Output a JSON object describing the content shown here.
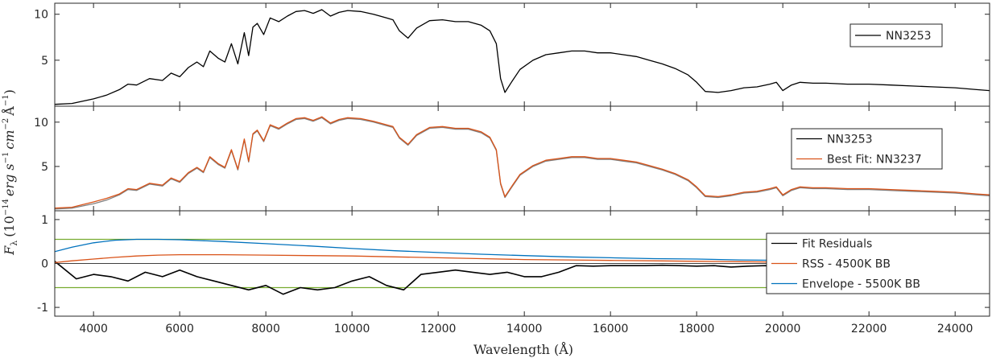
{
  "chart_data": {
    "type": "line",
    "xlabel": "Wavelength (Å)",
    "ylabel": "F_λ (10^-14 erg s^-1 cm^-2 Å^-1)",
    "ylabel_parts": {
      "base": "F",
      "sub": "λ",
      "t1": "(10",
      "e1": "−14",
      "t2": "erg s",
      "e2": "−1",
      "t3": "cm",
      "e3": "−2",
      "t4": "Å",
      "e4": "−1",
      "t5": ")"
    },
    "xlim": [
      3100,
      24800
    ],
    "xticks": [
      4000,
      6000,
      8000,
      10000,
      12000,
      14000,
      16000,
      18000,
      20000,
      22000,
      24000
    ],
    "colors": {
      "observed": "#000000",
      "fit": "#D95319",
      "gray": "#808080",
      "envelope": "#0072BD",
      "limit": "#77AC30"
    },
    "panels": [
      {
        "ylim": [
          0,
          11.2
        ],
        "yticks": [
          5,
          10
        ],
        "legend_location": "top-right",
        "legend": [
          "NN3253"
        ],
        "series": [
          {
            "name": "NN3253",
            "color": "observed",
            "x": [
              3100,
              3500,
              4000,
              4300,
              4600,
              4800,
              5000,
              5300,
              5600,
              5800,
              6000,
              6200,
              6400,
              6550,
              6700,
              6900,
              7050,
              7200,
              7350,
              7500,
              7600,
              7700,
              7800,
              7950,
              8100,
              8300,
              8500,
              8700,
              8900,
              9100,
              9300,
              9500,
              9700,
              9900,
              10200,
              10500,
              10800,
              10950,
              11100,
              11300,
              11500,
              11800,
              12100,
              12400,
              12700,
              13000,
              13200,
              13350,
              13450,
              13550,
              13700,
              13900,
              14200,
              14500,
              14800,
              15100,
              15400,
              15700,
              16000,
              16300,
              16600,
              16900,
              17200,
              17500,
              17800,
              18000,
              18200,
              18500,
              18800,
              19100,
              19400,
              19700,
              19850,
              20000,
              20200,
              20400,
              20700,
              21000,
              21500,
              22000,
              22500,
              23000,
              23500,
              24000,
              24500,
              24800
            ],
            "y": [
              0.2,
              0.3,
              0.8,
              1.2,
              1.8,
              2.4,
              2.3,
              3.0,
              2.8,
              3.6,
              3.2,
              4.2,
              4.8,
              4.3,
              6.0,
              5.2,
              4.8,
              6.8,
              4.6,
              8.0,
              5.5,
              8.6,
              9.0,
              7.8,
              9.6,
              9.2,
              9.8,
              10.3,
              10.4,
              10.1,
              10.5,
              9.8,
              10.2,
              10.4,
              10.3,
              10.0,
              9.6,
              9.4,
              8.2,
              7.4,
              8.5,
              9.3,
              9.4,
              9.2,
              9.2,
              8.8,
              8.2,
              6.8,
              3.0,
              1.5,
              2.6,
              4.0,
              5.0,
              5.6,
              5.8,
              6.0,
              6.0,
              5.8,
              5.8,
              5.6,
              5.4,
              5.0,
              4.6,
              4.1,
              3.4,
              2.6,
              1.6,
              1.5,
              1.7,
              2.0,
              2.1,
              2.4,
              2.6,
              1.7,
              2.3,
              2.6,
              2.5,
              2.5,
              2.4,
              2.4,
              2.3,
              2.2,
              2.1,
              2.0,
              1.8,
              1.7
            ]
          }
        ]
      },
      {
        "ylim": [
          0,
          11.8
        ],
        "yticks": [
          5,
          10
        ],
        "legend_location": "top-right",
        "legend": [
          "NN3253",
          "Best Fit: NN3237"
        ],
        "series": [
          {
            "name": "NN3253",
            "color": "gray",
            "x": [
              3100,
              3500,
              4000,
              4300,
              4600,
              4800,
              5000,
              5300,
              5600,
              5800,
              6000,
              6200,
              6400,
              6550,
              6700,
              6900,
              7050,
              7200,
              7350,
              7500,
              7600,
              7700,
              7800,
              7950,
              8100,
              8300,
              8500,
              8700,
              8900,
              9100,
              9300,
              9500,
              9700,
              9900,
              10200,
              10500,
              10800,
              10950,
              11100,
              11300,
              11500,
              11800,
              12100,
              12400,
              12700,
              13000,
              13200,
              13350,
              13450,
              13550,
              13700,
              13900,
              14200,
              14500,
              14800,
              15100,
              15400,
              15700,
              16000,
              16300,
              16600,
              16900,
              17200,
              17500,
              17800,
              18000,
              18200,
              18500,
              18800,
              19100,
              19400,
              19700,
              19850,
              20000,
              20200,
              20400,
              20700,
              21000,
              21500,
              22000,
              22500,
              23000,
              23500,
              24000,
              24500,
              24800
            ],
            "y": [
              0.2,
              0.3,
              0.8,
              1.2,
              1.8,
              2.4,
              2.3,
              3.0,
              2.8,
              3.6,
              3.2,
              4.2,
              4.8,
              4.3,
              6.0,
              5.2,
              4.8,
              6.8,
              4.6,
              8.0,
              5.5,
              8.6,
              9.0,
              7.8,
              9.6,
              9.2,
              9.8,
              10.3,
              10.4,
              10.1,
              10.5,
              9.8,
              10.2,
              10.4,
              10.3,
              10.0,
              9.6,
              9.4,
              8.2,
              7.4,
              8.5,
              9.3,
              9.4,
              9.2,
              9.2,
              8.8,
              8.2,
              6.8,
              3.0,
              1.5,
              2.6,
              4.0,
              5.0,
              5.6,
              5.8,
              6.0,
              6.0,
              5.8,
              5.8,
              5.6,
              5.4,
              5.0,
              4.6,
              4.1,
              3.4,
              2.6,
              1.6,
              1.5,
              1.7,
              2.0,
              2.1,
              2.4,
              2.6,
              1.7,
              2.3,
              2.6,
              2.5,
              2.5,
              2.4,
              2.4,
              2.3,
              2.2,
              2.1,
              2.0,
              1.8,
              1.7
            ]
          },
          {
            "name": "Best Fit: NN3237",
            "color": "fit",
            "x": [
              3100,
              3500,
              4000,
              4300,
              4600,
              4800,
              5000,
              5300,
              5600,
              5800,
              6000,
              6200,
              6400,
              6550,
              6700,
              6900,
              7050,
              7200,
              7350,
              7500,
              7600,
              7700,
              7800,
              7950,
              8100,
              8300,
              8500,
              8700,
              8900,
              9100,
              9300,
              9500,
              9700,
              9900,
              10200,
              10500,
              10800,
              10950,
              11100,
              11300,
              11500,
              11800,
              12100,
              12400,
              12700,
              13000,
              13200,
              13350,
              13450,
              13550,
              13700,
              13900,
              14200,
              14500,
              14800,
              15100,
              15400,
              15700,
              16000,
              16300,
              16600,
              16900,
              17200,
              17500,
              17800,
              18000,
              18200,
              18500,
              18800,
              19100,
              19400,
              19700,
              19850,
              20000,
              20200,
              20400,
              20700,
              21000,
              21500,
              22000,
              22500,
              23000,
              23500,
              24000,
              24500,
              24800
            ],
            "y": [
              0.3,
              0.4,
              1.0,
              1.4,
              1.9,
              2.5,
              2.4,
              3.1,
              2.9,
              3.7,
              3.3,
              4.3,
              4.9,
              4.4,
              6.1,
              5.3,
              4.9,
              6.9,
              4.7,
              8.1,
              5.6,
              8.7,
              9.1,
              7.9,
              9.7,
              9.3,
              9.9,
              10.4,
              10.5,
              10.2,
              10.6,
              9.9,
              10.3,
              10.5,
              10.4,
              10.1,
              9.7,
              9.5,
              8.3,
              7.5,
              8.6,
              9.4,
              9.5,
              9.3,
              9.3,
              8.9,
              8.3,
              6.9,
              3.1,
              1.6,
              2.7,
              4.1,
              5.1,
              5.7,
              5.9,
              6.1,
              6.1,
              5.9,
              5.9,
              5.7,
              5.5,
              5.1,
              4.7,
              4.2,
              3.5,
              2.7,
              1.7,
              1.6,
              1.8,
              2.1,
              2.2,
              2.5,
              2.7,
              1.8,
              2.4,
              2.7,
              2.6,
              2.6,
              2.5,
              2.5,
              2.4,
              2.3,
              2.2,
              2.1,
              1.9,
              1.8
            ]
          }
        ]
      },
      {
        "ylim": [
          -1.2,
          1.2
        ],
        "yticks": [
          -1,
          0,
          1
        ],
        "legend_location": "right",
        "legend": [
          "Fit Residuals",
          "RSS - 4500K BB",
          "Envelope - 5500K BB"
        ],
        "limits": [
          0.55,
          -0.55
        ],
        "series": [
          {
            "name": "Fit Residuals",
            "color": "observed",
            "x": [
              3100,
              3600,
              4000,
              4400,
              4800,
              5200,
              5600,
              6000,
              6400,
              6800,
              7200,
              7600,
              8000,
              8400,
              8800,
              9200,
              9600,
              10000,
              10400,
              10800,
              11200,
              11600,
              12000,
              12400,
              12800,
              13200,
              13600,
              14000,
              14400,
              14800,
              15200,
              15600,
              16000,
              16400,
              16800,
              17200,
              17600,
              18000,
              18400,
              18800,
              19200,
              19600,
              20000,
              20400,
              20800,
              21200,
              21600,
              22000,
              22400,
              22800,
              23200,
              23600,
              24000,
              24400,
              24800
            ],
            "y": [
              0.05,
              -0.35,
              -0.25,
              -0.3,
              -0.4,
              -0.2,
              -0.3,
              -0.15,
              -0.3,
              -0.4,
              -0.5,
              -0.6,
              -0.5,
              -0.7,
              -0.55,
              -0.6,
              -0.55,
              -0.4,
              -0.3,
              -0.5,
              -0.6,
              -0.25,
              -0.2,
              -0.15,
              -0.2,
              -0.25,
              -0.2,
              -0.3,
              -0.3,
              -0.2,
              -0.05,
              -0.06,
              -0.05,
              -0.05,
              -0.05,
              -0.04,
              -0.05,
              -0.06,
              -0.05,
              -0.08,
              -0.06,
              -0.05,
              -0.1,
              -0.05,
              -0.04,
              -0.03,
              -0.04,
              -0.03,
              -0.03,
              -0.05,
              -0.03,
              -0.03,
              -0.03,
              -0.02,
              -0.02
            ]
          },
          {
            "name": "RSS - 4500K BB",
            "color": "fit",
            "x": [
              3100,
              3500,
              4000,
              4500,
              5000,
              5500,
              6000,
              6500,
              7000,
              8000,
              9000,
              10000,
              11000,
              12000,
              13000,
              14000,
              15000,
              16000,
              17000,
              18000,
              19000,
              20000,
              21000,
              22000,
              23000,
              24000,
              24800
            ],
            "y": [
              0.02,
              0.06,
              0.1,
              0.14,
              0.17,
              0.19,
              0.2,
              0.2,
              0.2,
              0.19,
              0.18,
              0.17,
              0.15,
              0.13,
              0.11,
              0.09,
              0.08,
              0.07,
              0.06,
              0.05,
              0.04,
              0.03,
              0.03,
              0.03,
              0.02,
              0.02,
              0.02
            ]
          },
          {
            "name": "Envelope - 5500K BB",
            "color": "envelope",
            "x": [
              3100,
              3500,
              4000,
              4500,
              5000,
              5500,
              6000,
              6500,
              7000,
              8000,
              9000,
              10000,
              11000,
              12000,
              13000,
              14000,
              15000,
              16000,
              17000,
              18000,
              19000,
              20000,
              21000,
              22000,
              23000,
              24000,
              24800
            ],
            "y": [
              0.27,
              0.37,
              0.47,
              0.53,
              0.55,
              0.55,
              0.54,
              0.52,
              0.5,
              0.45,
              0.4,
              0.34,
              0.29,
              0.25,
              0.21,
              0.18,
              0.15,
              0.13,
              0.11,
              0.1,
              0.08,
              0.07,
              0.06,
              0.05,
              0.05,
              0.04,
              0.03
            ]
          }
        ]
      }
    ]
  }
}
